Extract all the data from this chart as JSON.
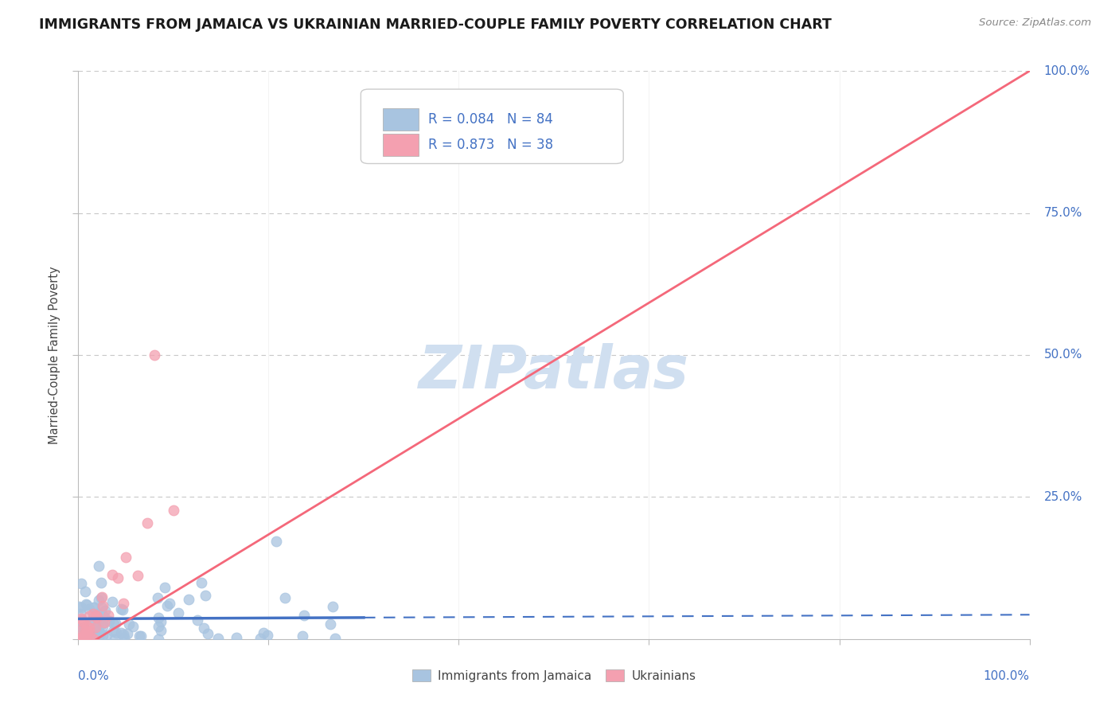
{
  "title": "IMMIGRANTS FROM JAMAICA VS UKRAINIAN MARRIED-COUPLE FAMILY POVERTY CORRELATION CHART",
  "source": "Source: ZipAtlas.com",
  "ylabel": "Married-Couple Family Poverty",
  "legend_jamaica_r": "0.084",
  "legend_jamaica_n": "84",
  "legend_ukraine_r": "0.873",
  "legend_ukraine_n": "38",
  "jamaica_color": "#a8c4e0",
  "ukraine_color": "#f4a0b0",
  "jamaica_line_color": "#4472c4",
  "ukraine_line_color": "#f4687a",
  "watermark": "ZIPatlas",
  "watermark_color": "#d0dff0",
  "background_color": "#ffffff",
  "grid_color": "#c8c8c8",
  "title_color": "#1a1a1a",
  "axis_label_color": "#4472c4",
  "legend_r_color": "#4472c4"
}
